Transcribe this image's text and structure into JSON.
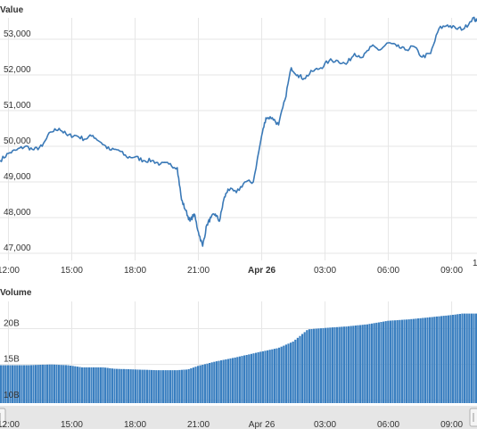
{
  "chart_data": [
    {
      "type": "line",
      "ylabel": "Value",
      "ylim": [
        46800,
        53600
      ],
      "yticks": [
        47000,
        48000,
        49000,
        50000,
        51000,
        52000,
        53000
      ],
      "ytick_labels": [
        "47,000",
        "48,000",
        "49,000",
        "50,000",
        "51,000",
        "52,000",
        "53,000"
      ],
      "xlim": [
        11.6,
        34.2
      ],
      "xticks": [
        12,
        15,
        18,
        21,
        24,
        27,
        30,
        33
      ],
      "xtick_labels": [
        "12:00",
        "15:00",
        "18:00",
        "21:00",
        "Apr 26",
        "03:00",
        "06:00",
        "09:00"
      ],
      "x_edge_label": "1",
      "x_unit": "hours since Apr 25 00:00",
      "grid": true,
      "color": "#3a79b7",
      "x": [
        11.6,
        12.0,
        12.4,
        12.8,
        13.2,
        13.6,
        14.0,
        14.4,
        14.8,
        15.2,
        15.6,
        16.0,
        16.4,
        16.8,
        17.2,
        17.6,
        18.0,
        18.4,
        18.8,
        19.2,
        19.6,
        20.0,
        20.2,
        20.4,
        20.6,
        20.8,
        21.0,
        21.2,
        21.4,
        21.6,
        21.8,
        22.0,
        22.2,
        22.4,
        22.8,
        23.2,
        23.6,
        24.0,
        24.2,
        24.5,
        24.8,
        25.1,
        25.4,
        25.7,
        26.0,
        26.4,
        26.8,
        27.2,
        27.6,
        28.0,
        28.4,
        28.8,
        29.2,
        29.6,
        30.0,
        30.4,
        30.8,
        31.2,
        31.6,
        32.0,
        32.4,
        32.8,
        33.2,
        33.6,
        34.0,
        34.2
      ],
      "y": [
        49600,
        49800,
        49900,
        50000,
        49900,
        50000,
        50400,
        50500,
        50300,
        50300,
        50200,
        50300,
        50100,
        49900,
        49900,
        49700,
        49700,
        49600,
        49600,
        49500,
        49500,
        49400,
        48500,
        48200,
        47900,
        48100,
        47600,
        47200,
        47800,
        48000,
        48100,
        47900,
        48500,
        48800,
        48700,
        49000,
        49000,
        50300,
        50800,
        50800,
        50600,
        51300,
        52200,
        52000,
        51900,
        52100,
        52200,
        52400,
        52400,
        52300,
        52600,
        52500,
        52800,
        52700,
        52900,
        52800,
        52700,
        52800,
        52500,
        52600,
        53300,
        53400,
        53300,
        53300,
        53600,
        53500
      ]
    },
    {
      "type": "bar",
      "ylabel": "Volume",
      "ylim": [
        9.6,
        23.8
      ],
      "yticks": [
        10,
        15,
        20
      ],
      "ytick_labels": [
        "10B",
        "15B",
        "20B"
      ],
      "xlim": [
        11.6,
        34.2
      ],
      "xticks": [
        12,
        15,
        18,
        21,
        24,
        27,
        30,
        33
      ],
      "xtick_labels": [
        "12:00",
        "15:00",
        "18:00",
        "21:00",
        "Apr 26",
        "03:00",
        "06:00",
        "09:00"
      ],
      "unit": "B",
      "color": "#3a7fc0",
      "x": [
        11.6,
        13.0,
        14.0,
        14.8,
        15.5,
        16.5,
        17.0,
        18.0,
        19.0,
        20.0,
        20.5,
        21.0,
        21.8,
        22.8,
        24.0,
        24.8,
        25.5,
        26.2,
        27.0,
        28.0,
        29.0,
        30.0,
        31.0,
        32.0,
        33.0,
        33.5,
        34.2
      ],
      "values": [
        14.9,
        14.9,
        15.0,
        14.9,
        14.6,
        14.6,
        14.4,
        14.3,
        14.2,
        14.2,
        14.3,
        14.8,
        15.4,
        16.0,
        16.8,
        17.3,
        18.2,
        19.9,
        20.1,
        20.3,
        20.6,
        21.1,
        21.3,
        21.6,
        21.9,
        22.1,
        22.1
      ]
    }
  ]
}
